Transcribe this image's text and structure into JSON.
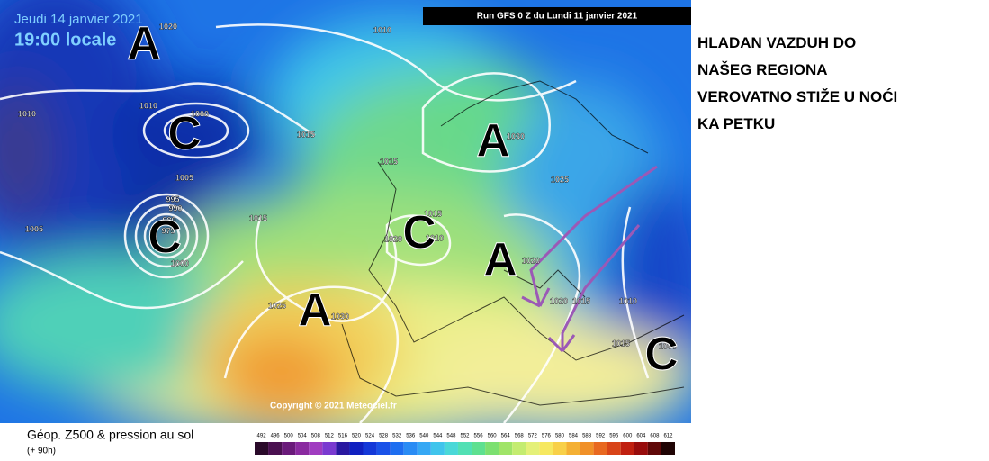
{
  "header": {
    "date": "Jeudi 14 janvier 2021",
    "time": "19:00 locale",
    "run": "Run GFS 0 Z du Lundi 11 janvier 2021"
  },
  "caption": [
    "HLADAN VAZDUH DO",
    "NAŠEG REGIONA",
    "VEROVATNO STIŽE U NOĆI",
    "KA PETKU"
  ],
  "centers": [
    "A",
    "C",
    "C",
    "A",
    "A",
    "C",
    "A",
    "C"
  ],
  "isobars": [
    "1020",
    "1010",
    "1010",
    "1010",
    "1000",
    "1015",
    "1005",
    "995",
    "990",
    "980",
    "975",
    "1000",
    "1005",
    "1015",
    "1025",
    "1030",
    "1015",
    "1015",
    "1020",
    "1010",
    "1030",
    "1025",
    "1020",
    "1020",
    "1015",
    "1010",
    "1015",
    "1005"
  ],
  "legend": {
    "title": "Géop. Z500 & pression au sol",
    "lead": "(+ 90h)",
    "scale": [
      492,
      496,
      500,
      504,
      508,
      512,
      516,
      520,
      524,
      528,
      532,
      536,
      540,
      544,
      548,
      552,
      556,
      560,
      564,
      568,
      572,
      576,
      580,
      584,
      588,
      592,
      596,
      600,
      604,
      608,
      612
    ]
  },
  "copyright": "Copyright © 2021 Meteociel.fr"
}
